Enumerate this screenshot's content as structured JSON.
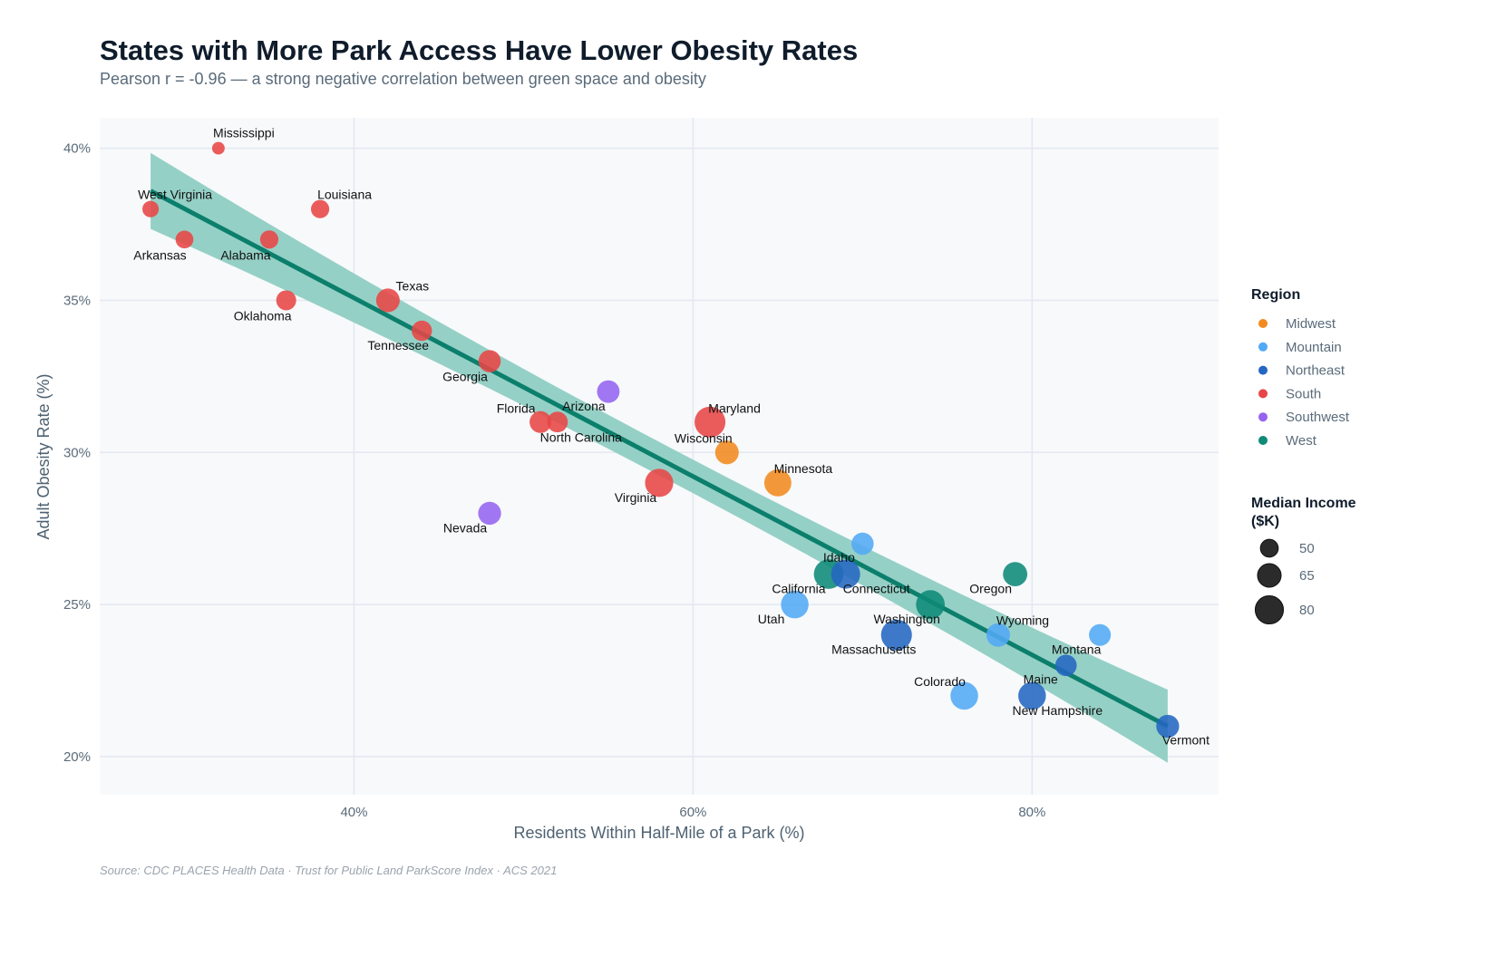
{
  "chart_data": {
    "type": "scatter",
    "title": "States with More Park Access Have Lower Obesity Rates",
    "subtitle": "Pearson r = -0.96 — a strong negative correlation between green space and obesity",
    "xlabel": "Residents Within Half-Mile of a Park (%)",
    "ylabel": "Adult Obesity Rate (%)",
    "source": "Source: CDC PLACES Health Data · Trust for Public Land ParkScore Index · ACS 2021",
    "xlim": [
      25,
      91
    ],
    "ylim": [
      18.75,
      41
    ],
    "xticks": [
      40,
      60,
      80
    ],
    "yticks": [
      20,
      25,
      30,
      35,
      40
    ],
    "tick_suffix": "%",
    "grid": true,
    "legend_placement": "right",
    "region_legend": {
      "title": "Region",
      "entries": [
        {
          "name": "Midwest",
          "color": "#F28A1F"
        },
        {
          "name": "Mountain",
          "color": "#52A9F5"
        },
        {
          "name": "Northeast",
          "color": "#2466C2"
        },
        {
          "name": "South",
          "color": "#E84646"
        },
        {
          "name": "Southwest",
          "color": "#9563F0"
        },
        {
          "name": "West",
          "color": "#0E8A78"
        }
      ]
    },
    "size_legend": {
      "title_line1": "Median Income",
      "title_line2": "($K)",
      "values": [
        "50",
        "65",
        "80"
      ]
    },
    "trend": {
      "type": "linear",
      "slope": -0.2933,
      "intercept": 46.81,
      "x_range": [
        28,
        88
      ],
      "line_color": "#0B7F6C",
      "band_color": "#8FCDC3",
      "ci_half_width": {
        "x": [
          28,
          58,
          88
        ],
        "half": [
          1.25,
          0.55,
          1.2
        ]
      }
    },
    "points": [
      {
        "state": "Mississippi",
        "region": "South",
        "x": 32,
        "y": 40,
        "income": 40
      },
      {
        "state": "West Virginia",
        "region": "South",
        "x": 28,
        "y": 38,
        "income": 47
      },
      {
        "state": "Louisiana",
        "region": "South",
        "x": 38,
        "y": 38,
        "income": 51
      },
      {
        "state": "Arkansas",
        "region": "South",
        "x": 30,
        "y": 37,
        "income": 50
      },
      {
        "state": "Alabama",
        "region": "South",
        "x": 35,
        "y": 37,
        "income": 51
      },
      {
        "state": "Oklahoma",
        "region": "South",
        "x": 36,
        "y": 35,
        "income": 55
      },
      {
        "state": "Texas",
        "region": "South",
        "x": 42,
        "y": 35,
        "income": 65
      },
      {
        "state": "Tennessee",
        "region": "South",
        "x": 44,
        "y": 34,
        "income": 56
      },
      {
        "state": "Georgia",
        "region": "South",
        "x": 48,
        "y": 33,
        "income": 61
      },
      {
        "state": "Arizona",
        "region": "Southwest",
        "x": 55,
        "y": 32,
        "income": 62
      },
      {
        "state": "Florida",
        "region": "South",
        "x": 51,
        "y": 31,
        "income": 60
      },
      {
        "state": "North Carolina",
        "region": "South",
        "x": 52,
        "y": 31,
        "income": 57
      },
      {
        "state": "Maryland",
        "region": "South",
        "x": 61,
        "y": 31,
        "income": 90
      },
      {
        "state": "Wisconsin",
        "region": "Midwest",
        "x": 62,
        "y": 30,
        "income": 65
      },
      {
        "state": "Virginia",
        "region": "South",
        "x": 58,
        "y": 29,
        "income": 80
      },
      {
        "state": "Minnesota",
        "region": "Midwest",
        "x": 65,
        "y": 29,
        "income": 76
      },
      {
        "state": "Nevada",
        "region": "Southwest",
        "x": 48,
        "y": 28,
        "income": 63
      },
      {
        "state": "Idaho",
        "region": "Mountain",
        "x": 70,
        "y": 27,
        "income": 61
      },
      {
        "state": "California",
        "region": "West",
        "x": 68,
        "y": 26,
        "income": 85
      },
      {
        "state": "Connecticut",
        "region": "Northeast",
        "x": 69,
        "y": 26,
        "income": 83
      },
      {
        "state": "Utah",
        "region": "Mountain",
        "x": 66,
        "y": 25,
        "income": 78
      },
      {
        "state": "Washington",
        "region": "West",
        "x": 74,
        "y": 25,
        "income": 82
      },
      {
        "state": "Massachusetts",
        "region": "Northeast",
        "x": 72,
        "y": 24,
        "income": 90
      },
      {
        "state": "Oregon",
        "region": "West",
        "x": 79,
        "y": 26,
        "income": 67
      },
      {
        "state": "Wyoming",
        "region": "Mountain",
        "x": 78,
        "y": 24,
        "income": 65
      },
      {
        "state": "Montana",
        "region": "Mountain",
        "x": 84,
        "y": 24,
        "income": 60
      },
      {
        "state": "Maine",
        "region": "Northeast",
        "x": 82,
        "y": 23,
        "income": 59
      },
      {
        "state": "New Hampshire",
        "region": "Northeast",
        "x": 80,
        "y": 22,
        "income": 78
      },
      {
        "state": "Colorado",
        "region": "Mountain",
        "x": 76,
        "y": 22,
        "income": 78
      },
      {
        "state": "Vermont",
        "region": "Northeast",
        "x": 88,
        "y": 21,
        "income": 63
      }
    ]
  }
}
